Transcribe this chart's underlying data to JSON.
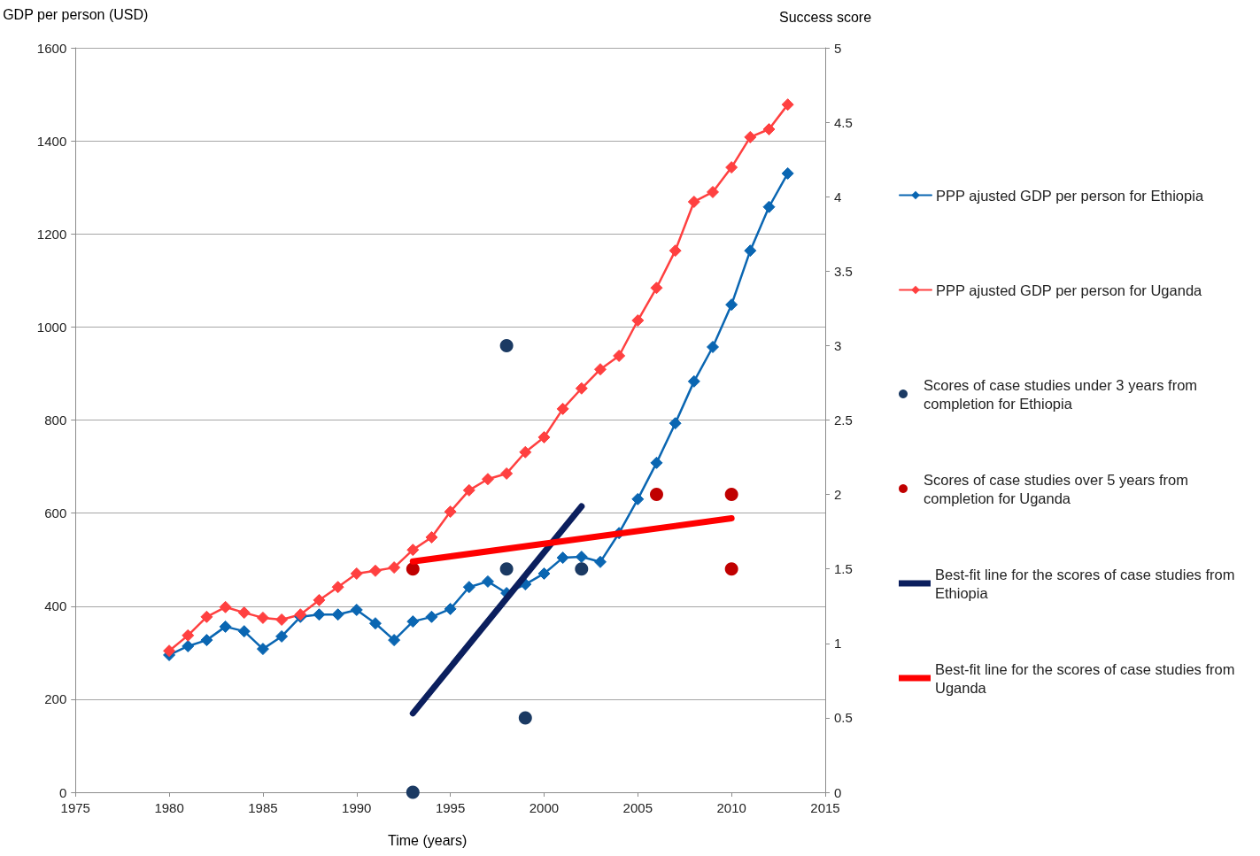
{
  "chart_data": {
    "type": "line",
    "xlabel": "Time (years)",
    "ylabel": "GDP per person (USD)",
    "y2label": "Success score",
    "x": [
      1980,
      1981,
      1982,
      1983,
      1984,
      1985,
      1986,
      1987,
      1988,
      1989,
      1990,
      1991,
      1992,
      1993,
      1994,
      1995,
      1996,
      1997,
      1998,
      1999,
      2000,
      2001,
      2002,
      2003,
      2004,
      2005,
      2006,
      2007,
      2008,
      2009,
      2010,
      2011,
      2012,
      2013
    ],
    "xlim": [
      1975,
      2015
    ],
    "xticks": [
      1975,
      1980,
      1985,
      1990,
      1995,
      2000,
      2005,
      2010,
      2015
    ],
    "ylim": [
      0,
      1600
    ],
    "yticks": [
      0,
      200,
      400,
      600,
      800,
      1000,
      1200,
      1400,
      1600
    ],
    "y2lim": [
      0,
      5
    ],
    "y2ticks": [
      0,
      0.5,
      1,
      1.5,
      2,
      2.5,
      3,
      3.5,
      4,
      4.5,
      5
    ],
    "grid": "y",
    "legend": "right",
    "series": [
      {
        "name": "PPP ajusted GDP per person for Ethiopia",
        "axis": "y",
        "marker": "diamond",
        "color": "#0a66b2",
        "values": [
          295,
          314,
          327,
          356,
          346,
          308,
          335,
          377,
          382,
          382,
          392,
          363,
          327,
          367,
          377,
          394,
          441,
          453,
          428,
          447,
          470,
          504,
          506,
          495,
          557,
          630,
          708,
          793,
          883,
          957,
          1048,
          1164,
          1258,
          1330
        ]
      },
      {
        "name": "PPP ajusted GDP per person for Uganda",
        "axis": "y",
        "marker": "diamond",
        "color": "#ff4040",
        "values": [
          304,
          337,
          377,
          398,
          386,
          375,
          371,
          382,
          413,
          441,
          470,
          476,
          483,
          521,
          548,
          603,
          649,
          673,
          685,
          731,
          763,
          824,
          868,
          909,
          938,
          1014,
          1084,
          1164,
          1269,
          1290,
          1343,
          1408,
          1425,
          1478
        ]
      },
      {
        "name": "Scores of case studies under 3 years from completion for Ethiopia",
        "type": "scatter",
        "axis": "y2",
        "marker": "circle",
        "color": "#1b3a63",
        "x": [
          1993,
          1998,
          1998,
          1999,
          2002
        ],
        "values": [
          0,
          3,
          1.5,
          0.5,
          1.5
        ]
      },
      {
        "name": "Scores of case studies over 5 years from completion for Uganda",
        "type": "scatter",
        "axis": "y2",
        "marker": "circle",
        "color": "#c00000",
        "x": [
          1993,
          2006,
          2010,
          2010
        ],
        "values": [
          1.5,
          2,
          2,
          1.5
        ]
      },
      {
        "name": "Best-fit line for the scores of case studies from Ethiopia",
        "axis": "y2",
        "marker": "none",
        "color": "#0b1f5e",
        "x": [
          1993,
          2002
        ],
        "values": [
          0.53,
          1.92
        ]
      },
      {
        "name": "Best-fit line for the scores of case studies from Uganda",
        "axis": "y2",
        "marker": "none",
        "color": "#ff0000",
        "x": [
          1993,
          2010
        ],
        "values": [
          1.55,
          1.84
        ]
      }
    ]
  }
}
